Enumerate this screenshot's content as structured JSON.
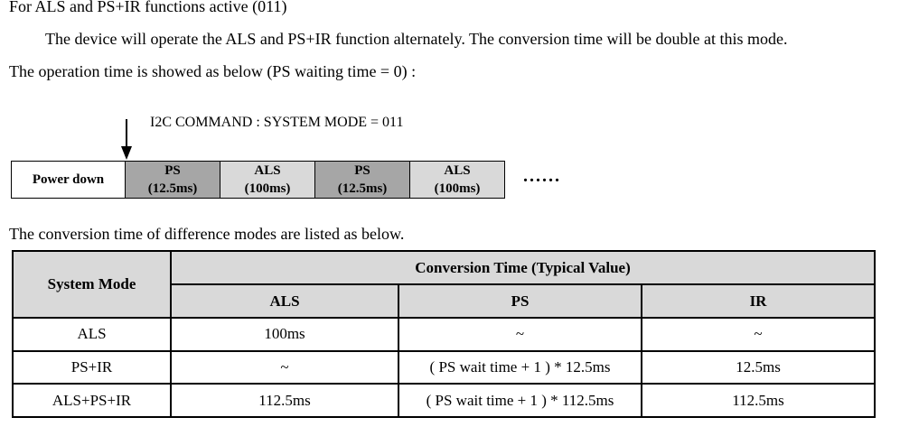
{
  "heading": "For ALS and PS+IR functions active (011)",
  "paragraph1": "The device will operate the ALS and PS+IR function alternately. The conversion time will be double at this mode.",
  "paragraph2": "The operation time is showed as below (PS waiting time = 0) :",
  "timing_diagram": {
    "command": "I2C COMMAND : SYSTEM MODE = 011",
    "segments": [
      {
        "name": "Power down",
        "sub": ""
      },
      {
        "name": "PS",
        "sub": "(12.5ms)"
      },
      {
        "name": "ALS",
        "sub": "(100ms)"
      },
      {
        "name": "PS",
        "sub": "(12.5ms)"
      },
      {
        "name": "ALS",
        "sub": "(100ms)"
      }
    ],
    "continuation": "......"
  },
  "table_intro": "The conversion time of difference modes are listed as below.",
  "table": {
    "system_mode_header": "System Mode",
    "group_header": "Conversion Time (Typical Value)",
    "columns": [
      "ALS",
      "PS",
      "IR"
    ],
    "rows": [
      {
        "mode": "ALS",
        "als": "100ms",
        "ps": "~",
        "ir": "~"
      },
      {
        "mode": "PS+IR",
        "als": "~",
        "ps": "( PS wait time + 1 ) * 12.5ms",
        "ir": "12.5ms"
      },
      {
        "mode": "ALS+PS+IR",
        "als": "112.5ms",
        "ps": "( PS wait time + 1 ) * 112.5ms",
        "ir": "112.5ms"
      }
    ]
  }
}
